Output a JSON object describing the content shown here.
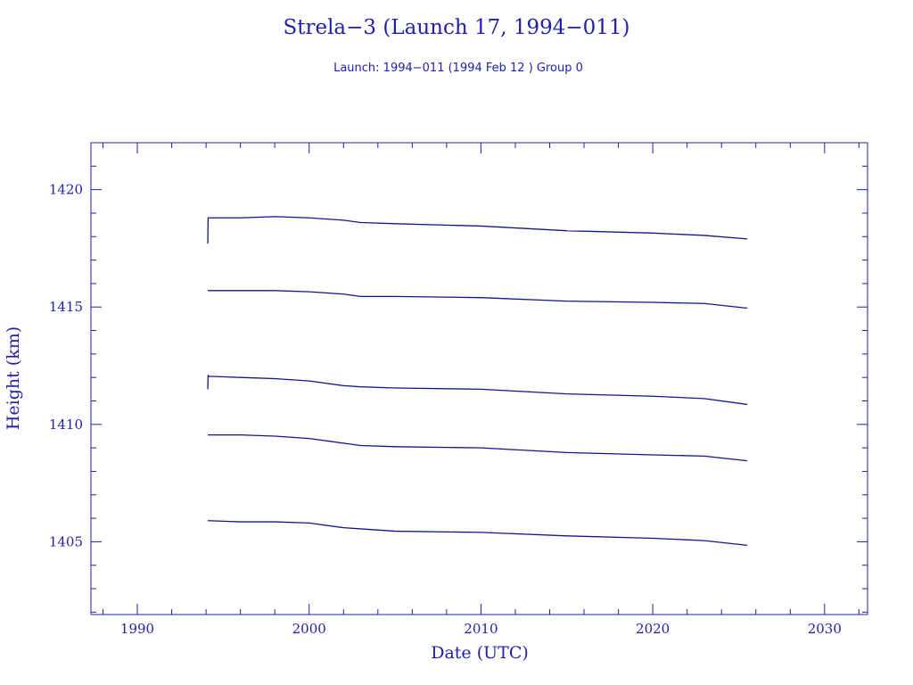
{
  "chart_data": {
    "type": "line",
    "title": "Strela−3 (Launch 17, 1994−011)",
    "subtitle": "Launch: 1994−011  (1994 Feb 12 )  Group 0",
    "xlabel": "Date (UTC)",
    "ylabel": "Height (km)",
    "xlim": [
      1987.3,
      2032.5
    ],
    "ylim": [
      1401.9,
      1422.0
    ],
    "x_ticks": [
      1990,
      2000,
      2010,
      2020,
      2030
    ],
    "x_tick_labels": [
      "1990",
      "2000",
      "2010",
      "2020",
      "2030"
    ],
    "y_ticks": [
      1405,
      1410,
      1415,
      1420
    ],
    "y_tick_labels": [
      "1405",
      "1410",
      "1415",
      "1420"
    ],
    "x_minor_step": 2,
    "y_minor_step": 1,
    "grid": false,
    "legend": "none",
    "color": "#14148a",
    "axis_color": "#1f1fa8",
    "series": [
      {
        "x": [
          1994.1,
          1994.12,
          1994.15,
          1996,
          1998,
          2000,
          2002,
          2003,
          2005,
          2010,
          2015,
          2020,
          2023,
          2025.5
        ],
        "y": [
          1417.7,
          1418.8,
          1418.8,
          1418.8,
          1418.85,
          1418.8,
          1418.7,
          1418.6,
          1418.55,
          1418.45,
          1418.25,
          1418.15,
          1418.05,
          1417.9
        ]
      },
      {
        "x": [
          1994.1,
          1996,
          1998,
          2000,
          2002,
          2003,
          2005,
          2010,
          2015,
          2020,
          2023,
          2025.5
        ],
        "y": [
          1415.7,
          1415.7,
          1415.7,
          1415.65,
          1415.55,
          1415.45,
          1415.45,
          1415.4,
          1415.25,
          1415.2,
          1415.15,
          1414.95
        ]
      },
      {
        "x": [
          1994.1,
          1994.12,
          1994.15,
          1996,
          1998,
          2000,
          2002,
          2003,
          2005,
          2010,
          2015,
          2020,
          2023,
          2025.5
        ],
        "y": [
          1411.5,
          1412.1,
          1412.05,
          1412.0,
          1411.95,
          1411.85,
          1411.65,
          1411.6,
          1411.55,
          1411.5,
          1411.3,
          1411.2,
          1411.1,
          1410.85
        ]
      },
      {
        "x": [
          1994.1,
          1996,
          1998,
          2000,
          2002,
          2003,
          2005,
          2010,
          2015,
          2020,
          2023,
          2025.5
        ],
        "y": [
          1409.55,
          1409.55,
          1409.5,
          1409.4,
          1409.2,
          1409.1,
          1409.05,
          1409.0,
          1408.8,
          1408.7,
          1408.65,
          1408.45
        ]
      },
      {
        "x": [
          1994.1,
          1996,
          1998,
          2000,
          2002,
          2003,
          2005,
          2010,
          2015,
          2020,
          2023,
          2025.5
        ],
        "y": [
          1405.9,
          1405.85,
          1405.85,
          1405.8,
          1405.6,
          1405.55,
          1405.45,
          1405.4,
          1405.25,
          1405.15,
          1405.05,
          1404.85
        ]
      }
    ]
  }
}
